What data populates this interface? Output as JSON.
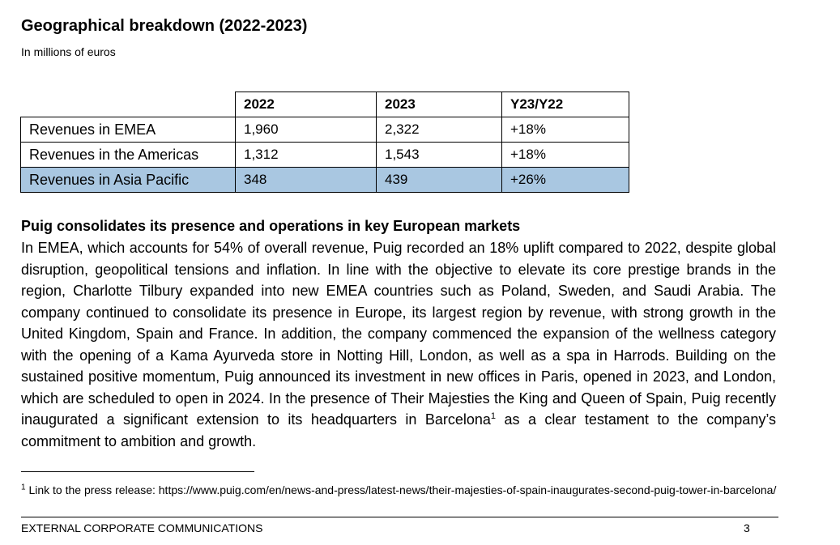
{
  "title": "Geographical breakdown (2022-2023)",
  "subtitle": "In millions of euros",
  "table": {
    "headers": [
      "",
      "2022",
      "2023",
      "Y23/Y22"
    ],
    "rows": [
      {
        "label": "Revenues in EMEA",
        "y2022": "1,960",
        "y2023": "2,322",
        "change": "+18%"
      },
      {
        "label": "Revenues in the Americas",
        "y2022": "1,312",
        "y2023": "1,543",
        "change": "+18%"
      },
      {
        "label": "Revenues in Asia Pacific",
        "y2022": "348",
        "y2023": "439",
        "change": "+26%"
      }
    ],
    "highlight_color": "#a9c7e1"
  },
  "section": {
    "heading": "Puig consolidates its presence and operations in key European markets",
    "paragraph_main": "In EMEA, which accounts for 54% of overall revenue, Puig recorded an 18% uplift compared to 2022, despite global disruption, geopolitical tensions and inflation. In line with the objective to elevate its core prestige brands in the region, Charlotte Tilbury expanded into new EMEA countries such as Poland, Sweden, and Saudi Arabia. The company continued to consolidate its presence in Europe, its largest region by revenue, with strong growth in the United Kingdom, Spain and France. In addition, the company commenced the expansion of the wellness category with the opening of a Kama Ayurveda store in Notting Hill, London, as well as a spa in Harrods. Building on the sustained positive momentum, Puig announced its investment in new offices in Paris, opened in 2023, and London, which are scheduled to open in 2024. In the presence of Their Majesties the King and Queen of Spain, Puig recently inaugurated a significant extension to its headquarters in Barcelona",
    "footnote_marker": "1",
    "paragraph_tail": " as a clear testament to the company’s commitment to ambition and growth."
  },
  "footnote": {
    "marker": "1",
    "text": " Link to the press release: https://www.puig.com/en/news-and-press/latest-news/their-majesties-of-spain-inaugurates-second-puig-tower-in-barcelona/"
  },
  "footer": {
    "left": "EXTERNAL CORPORATE COMMUNICATIONS",
    "page": "3"
  }
}
